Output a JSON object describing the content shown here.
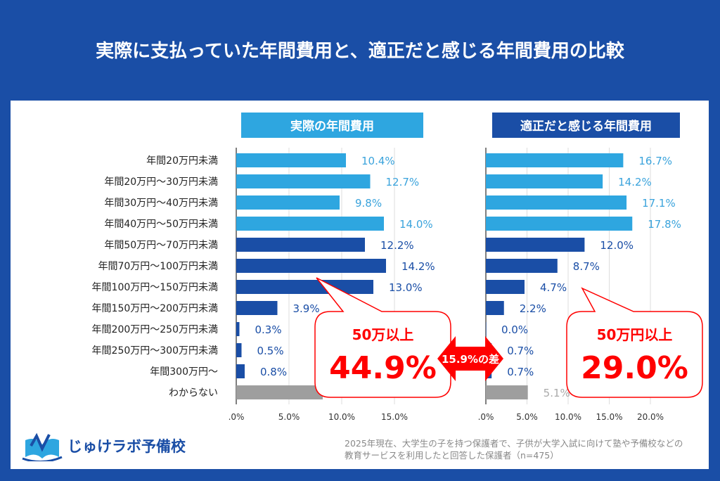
{
  "title": "実際に支払っていた年間費用と、適正だと感じる年間費用の比較",
  "colors": {
    "background": "#1a4ea6",
    "light_blue": "#2ea6e0",
    "dark_blue": "#1a4ea6",
    "gray": "#9e9e9e",
    "red": "#ff0000"
  },
  "chart_data": [
    {
      "type": "bar",
      "orientation": "horizontal",
      "title": "実際の年間費用",
      "categories": [
        "年間20万円未満",
        "年間20万円〜30万円未満",
        "年間30万円〜40万円未満",
        "年間40万円〜50万円未満",
        "年間50万円〜70万円未満",
        "年間70万円〜100万円未満",
        "年間100万円〜150万円未満",
        "年間150万円〜200万円未満",
        "年間200万円〜250万円未満",
        "年間250万円〜300万円未満",
        "年間300万円〜",
        "わからない"
      ],
      "values": [
        10.4,
        12.7,
        9.8,
        14.0,
        12.2,
        14.2,
        13.0,
        3.9,
        0.3,
        0.5,
        0.8,
        8.2
      ],
      "labels": [
        "10.4%",
        "12.7%",
        "9.8%",
        "14.0%",
        "12.2%",
        "14.2%",
        "13.0%",
        "3.9%",
        "0.3%",
        "0.5%",
        "0.8%",
        ""
      ],
      "xlim": [
        0,
        20
      ],
      "ticks": [
        ".0%",
        "5.0%",
        "10.0%",
        "15.0%"
      ],
      "grid": true
    },
    {
      "type": "bar",
      "orientation": "horizontal",
      "title": "適正だと感じる年間費用",
      "categories": [
        "年間20万円未満",
        "年間20万円〜30万円未満",
        "年間30万円〜40万円未満",
        "年間40万円〜50万円未満",
        "年間50万円〜70万円未満",
        "年間70万円〜100万円未満",
        "年間100万円〜150万円未満",
        "年間150万円〜200万円未満",
        "年間200万円〜250万円未満",
        "年間250万円〜300万円未満",
        "年間300万円〜",
        "わからない"
      ],
      "values": [
        16.7,
        14.2,
        17.1,
        17.8,
        12.0,
        8.7,
        4.7,
        2.2,
        0.0,
        0.7,
        0.7,
        5.1
      ],
      "labels": [
        "16.7%",
        "14.2%",
        "17.1%",
        "17.8%",
        "12.0%",
        "8.7%",
        "4.7%",
        "2.2%",
        "0.0%",
        "0.7%",
        "0.7%",
        "5.1%"
      ],
      "xlim": [
        0,
        25
      ],
      "ticks": [
        ".0%",
        "5.0%",
        "10.0%",
        "15.0%",
        "20.0%"
      ],
      "grid": true
    }
  ],
  "callouts": {
    "left": {
      "label": "50万以上",
      "value": "44.9%"
    },
    "right": {
      "label": "50万円以上",
      "value": "29.0%"
    },
    "difference": "15.9%の差"
  },
  "logo": "じゅけラボ予備校",
  "footnote": [
    "2025年現在、大学生の子を持つ保護者で、子供が大学入試に向けて塾や予備校などの",
    "教育サービスを利用したと回答した保護者（n=475）"
  ]
}
